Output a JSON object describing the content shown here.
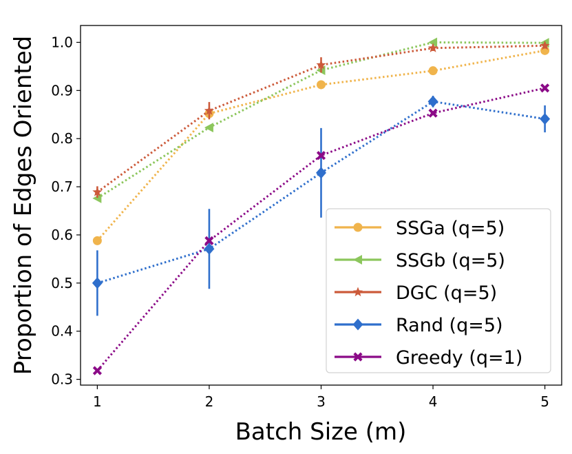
{
  "chart_data": {
    "type": "line",
    "title": "",
    "xlabel": "Batch Size (m)",
    "ylabel": "Proportion of Edges Oriented",
    "x": [
      1,
      2,
      3,
      4,
      5
    ],
    "xlim": [
      0.85,
      5.15
    ],
    "ylim": [
      0.288,
      1.035
    ],
    "xticks": [
      "1",
      "2",
      "3",
      "4",
      "5"
    ],
    "yticks": [
      "0.3",
      "0.4",
      "0.5",
      "0.6",
      "0.7",
      "0.8",
      "0.9",
      "1.0"
    ],
    "grid": false,
    "legend_position": "lower-right",
    "series": [
      {
        "name": "SSGa (q=5)",
        "color": "#f0b44c",
        "marker": "circle",
        "values": [
          0.588,
          0.852,
          0.912,
          0.941,
          0.983
        ],
        "err": [
          0,
          0,
          0,
          0,
          0
        ]
      },
      {
        "name": "SSGb (q=5)",
        "color": "#8cc65c",
        "marker": "triangle-left",
        "values": [
          0.676,
          0.823,
          0.942,
          1.0,
          0.999
        ],
        "err": [
          0,
          0,
          0,
          0,
          0
        ]
      },
      {
        "name": "DGC (q=5)",
        "color": "#cc5a3a",
        "marker": "star",
        "values": [
          0.689,
          0.858,
          0.953,
          0.988,
          0.993
        ],
        "err": [
          0.012,
          0.018,
          0.016,
          0.006,
          0.006
        ]
      },
      {
        "name": "Rand (q=5)",
        "color": "#2f6fcc",
        "marker": "diamond",
        "values": [
          0.5,
          0.571,
          0.729,
          0.877,
          0.841
        ],
        "err": [
          0.068,
          0.083,
          0.093,
          0.012,
          0.028
        ]
      },
      {
        "name": "Greedy (q=1)",
        "color": "#8b0a87",
        "marker": "x-filled",
        "values": [
          0.318,
          0.588,
          0.765,
          0.853,
          0.905
        ],
        "err": [
          0,
          0,
          0,
          0,
          0
        ]
      }
    ]
  }
}
